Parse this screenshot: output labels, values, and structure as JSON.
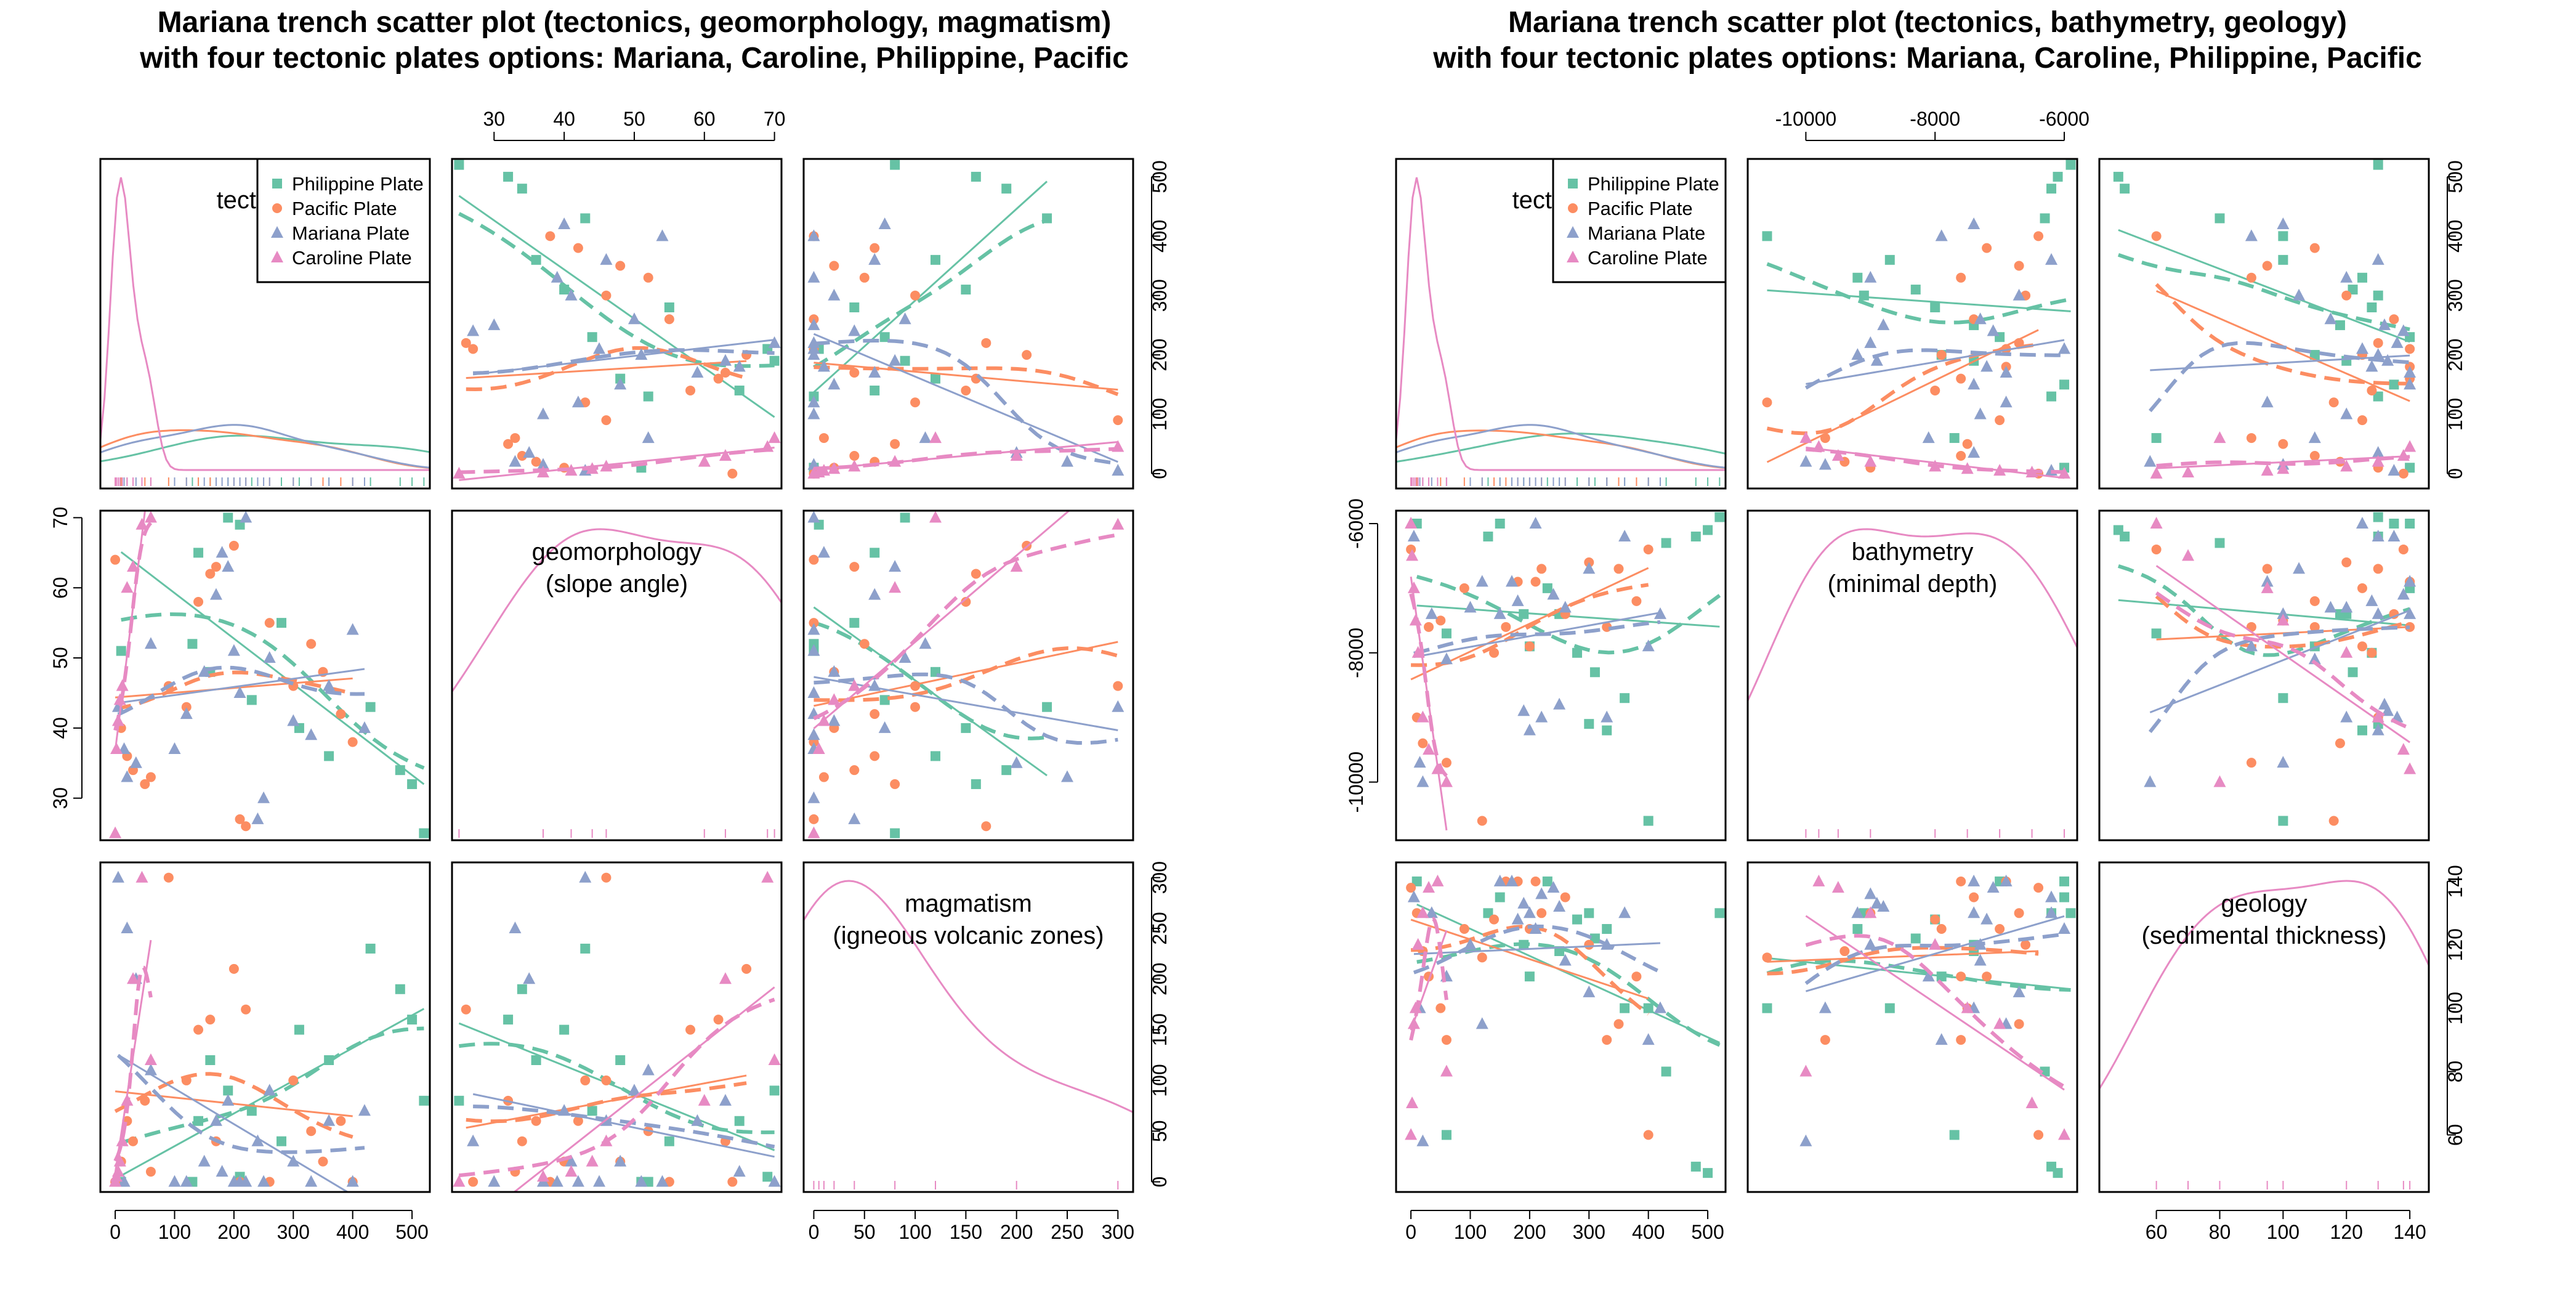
{
  "colors": {
    "Philippine Plate": "#66C2A5",
    "Pacific Plate": "#FC8D62",
    "Mariana Plate": "#8DA0CB",
    "Caroline Plate": "#E78AC3"
  },
  "chart_data": [
    {
      "type": "scatter-matrix",
      "title_line1": "Mariana trench scatter plot (tectonics, geomorphology, magmatism)",
      "title_line2": "with four tectonic plates options: Mariana, Caroline, Philippine, Pacific",
      "variables": [
        {
          "name": "tectonics",
          "label_line1": "tectonics",
          "label_line2": "",
          "range": [
            -25,
            530
          ],
          "ticks": [
            0,
            100,
            200,
            300,
            400,
            500
          ],
          "density_series": [
            "Philippine Plate",
            "Pacific Plate",
            "Mariana Plate",
            "Caroline Plate"
          ]
        },
        {
          "name": "geomorphology",
          "label_line1": "geomorphology",
          "label_line2": "(slope angle)",
          "range": [
            24,
            71
          ],
          "ticks": [
            30,
            40,
            50,
            60,
            70
          ],
          "density_series": [
            "Caroline Plate"
          ]
        },
        {
          "name": "magmatism",
          "label_line1": "magmatism",
          "label_line2": "(igneous volcanic zones)",
          "range": [
            -10,
            315
          ],
          "ticks": [
            0,
            50,
            100,
            150,
            200,
            250,
            300
          ],
          "density_series": [
            "Caroline Plate"
          ]
        }
      ],
      "legend": {
        "placement": "top-right of first diagonal panel",
        "entries": [
          "Philippine Plate",
          "Pacific Plate",
          "Mariana Plate",
          "Caroline Plate"
        ]
      },
      "series": [
        {
          "name": "Philippine Plate",
          "marker": "square",
          "tectonics": [
            10,
            130,
            140,
            190,
            210,
            280,
            310,
            360,
            430,
            480,
            500,
            520,
            160,
            230
          ],
          "geomorphology": [
            51,
            52,
            65,
            70,
            69,
            55,
            40,
            36,
            43,
            34,
            32,
            25,
            48,
            44
          ],
          "magmatism": [
            0,
            0,
            60,
            90,
            5,
            40,
            150,
            120,
            230,
            190,
            160,
            80,
            120,
            70
          ]
        },
        {
          "name": "Pacific Plate",
          "marker": "circle",
          "tectonics": [
            0,
            10,
            20,
            30,
            50,
            60,
            90,
            120,
            160,
            200,
            210,
            220,
            260,
            300,
            330,
            350,
            380,
            400,
            140,
            170
          ],
          "geomorphology": [
            64,
            40,
            36,
            34,
            32,
            33,
            46,
            43,
            62,
            66,
            27,
            26,
            55,
            46,
            52,
            48,
            42,
            38,
            58,
            63
          ],
          "magmatism": [
            0,
            20,
            60,
            40,
            80,
            10,
            300,
            100,
            160,
            210,
            0,
            170,
            0,
            100,
            50,
            20,
            60,
            0,
            150,
            40
          ]
        },
        {
          "name": "Mariana Plate",
          "marker": "triangle",
          "tectonics": [
            5,
            15,
            20,
            35,
            60,
            100,
            120,
            150,
            170,
            190,
            200,
            210,
            220,
            240,
            260,
            300,
            330,
            360,
            400,
            420,
            180,
            250
          ],
          "geomorphology": [
            43,
            37,
            33,
            35,
            52,
            37,
            42,
            48,
            59,
            63,
            51,
            45,
            70,
            27,
            50,
            41,
            39,
            46,
            54,
            40,
            65,
            30
          ],
          "magmatism": [
            300,
            0,
            250,
            200,
            110,
            0,
            0,
            20,
            60,
            80,
            0,
            0,
            0,
            40,
            90,
            20,
            0,
            60,
            0,
            70,
            10,
            0
          ]
        },
        {
          "name": "Caroline Plate",
          "marker": "triangle",
          "tectonics": [
            0,
            2,
            5,
            8,
            12,
            20,
            30,
            45,
            60
          ],
          "geomorphology": [
            25,
            37,
            41,
            44,
            46,
            60,
            63,
            69,
            70
          ],
          "magmatism": [
            0,
            5,
            10,
            20,
            40,
            80,
            200,
            300,
            120
          ]
        }
      ]
    },
    {
      "type": "scatter-matrix",
      "title_line1": "Mariana trench scatter plot (tectonics, bathymetry, geology)",
      "title_line2": "with four tectonic plates options: Mariana, Caroline, Philippine, Pacific",
      "variables": [
        {
          "name": "tectonics",
          "label_line1": "tectonics",
          "label_line2": "",
          "range": [
            -25,
            530
          ],
          "ticks": [
            0,
            100,
            200,
            300,
            400,
            500
          ],
          "density_series": [
            "Philippine Plate",
            "Pacific Plate",
            "Mariana Plate",
            "Caroline Plate"
          ]
        },
        {
          "name": "bathymetry",
          "label_line1": "bathymetry",
          "label_line2": "(minimal depth)",
          "range": [
            -10900,
            -5800
          ],
          "ticks": [
            -10000,
            -8000,
            -6000
          ],
          "density_series": [
            "Caroline Plate"
          ]
        },
        {
          "name": "geology",
          "label_line1": "geology",
          "label_line2": "(sedimental thickness)",
          "range": [
            42,
            146
          ],
          "ticks": [
            60,
            80,
            100,
            120,
            140
          ],
          "density_series": [
            "Caroline Plate"
          ]
        }
      ],
      "legend": {
        "placement": "top-right of first diagonal panel",
        "entries": [
          "Philippine Plate",
          "Pacific Plate",
          "Mariana Plate",
          "Caroline Plate"
        ]
      },
      "series": [
        {
          "name": "Philippine Plate",
          "marker": "square",
          "tectonics": [
            10,
            60,
            130,
            150,
            190,
            230,
            280,
            300,
            330,
            360,
            400,
            430,
            480,
            500,
            520,
            200,
            250,
            310
          ],
          "bathymetry": [
            -6000,
            -7700,
            -6200,
            -6000,
            -7400,
            -7000,
            -8000,
            -9100,
            -9200,
            -8700,
            -10600,
            -6300,
            -6200,
            -6100,
            -5900,
            -7900,
            -7400,
            -8300
          ],
          "geology": [
            140,
            60,
            130,
            135,
            120,
            140,
            128,
            130,
            125,
            100,
            100,
            80,
            50,
            48,
            130,
            110,
            118,
            122
          ]
        },
        {
          "name": "Pacific Plate",
          "marker": "circle",
          "tectonics": [
            0,
            10,
            20,
            30,
            50,
            60,
            90,
            120,
            160,
            180,
            200,
            210,
            220,
            260,
            300,
            330,
            350,
            380,
            400,
            140
          ],
          "bathymetry": [
            -6400,
            -9000,
            -9400,
            -7600,
            -7500,
            -9700,
            -7000,
            -10600,
            -7600,
            -6900,
            -7900,
            -6900,
            -6700,
            -7400,
            -6600,
            -7600,
            -6700,
            -7200,
            -6400,
            -8000
          ],
          "geology": [
            138,
            130,
            118,
            110,
            100,
            90,
            125,
            116,
            140,
            140,
            125,
            140,
            130,
            135,
            120,
            90,
            95,
            110,
            60,
            128
          ]
        },
        {
          "name": "Mariana Plate",
          "marker": "triangle",
          "tectonics": [
            5,
            15,
            20,
            35,
            60,
            100,
            120,
            150,
            170,
            190,
            200,
            210,
            220,
            240,
            260,
            300,
            330,
            360,
            400,
            420,
            180,
            250
          ],
          "bathymetry": [
            -6200,
            -9700,
            -10000,
            -7400,
            -8100,
            -7300,
            -6900,
            -7400,
            -6900,
            -8900,
            -9200,
            -6000,
            -9000,
            -7100,
            -7300,
            -6700,
            -9000,
            -6200,
            -7900,
            -7400,
            -7200,
            -8800
          ],
          "geology": [
            135,
            100,
            58,
            130,
            110,
            120,
            95,
            140,
            140,
            133,
            130,
            125,
            136,
            138,
            115,
            105,
            120,
            130,
            90,
            100,
            128,
            132
          ]
        },
        {
          "name": "Caroline Plate",
          "marker": "triangle",
          "tectonics": [
            0,
            2,
            5,
            8,
            12,
            20,
            30,
            45,
            60
          ],
          "bathymetry": [
            -6000,
            -6500,
            -7000,
            -7500,
            -8000,
            -9000,
            -9500,
            -9800,
            -10000
          ],
          "geology": [
            60,
            70,
            95,
            100,
            120,
            130,
            138,
            140,
            80
          ]
        }
      ]
    }
  ]
}
